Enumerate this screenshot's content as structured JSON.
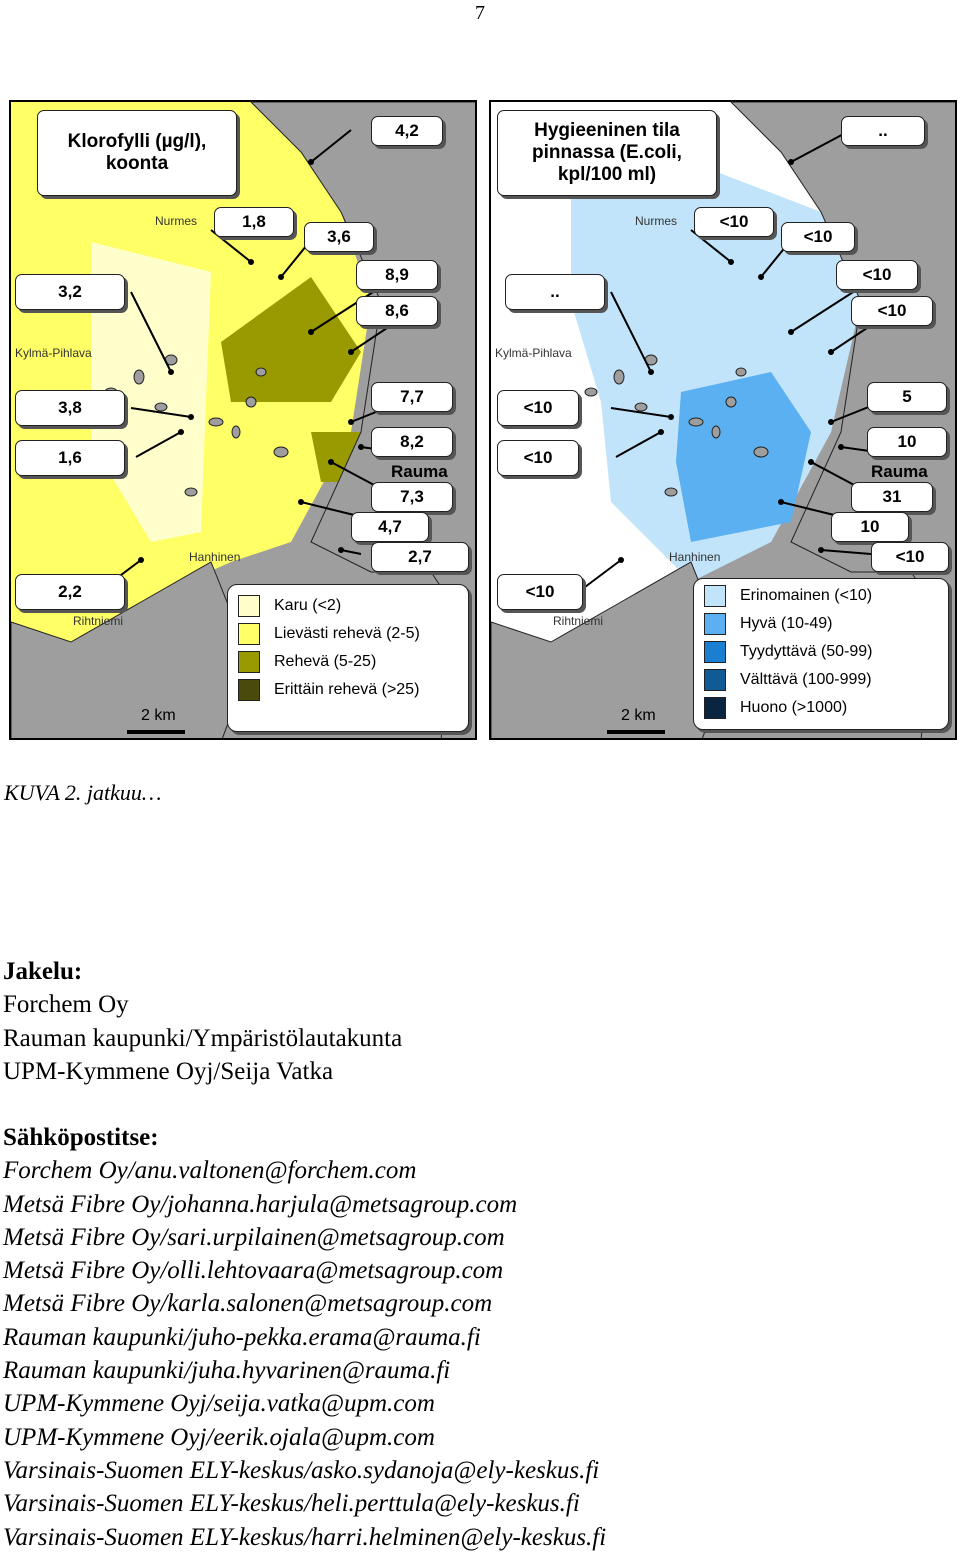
{
  "page_number": "7",
  "caption": "KUVA 2. jatkuu…",
  "map_left": {
    "title": "Klorofylli (µg/l), koonta",
    "values": [
      "4,2",
      "1,8",
      "3,6",
      "3,2",
      "8,9",
      "8,6",
      "3,8",
      "7,7",
      "1,6",
      "8,2",
      "7,3",
      "4,7",
      "2,7",
      "2,2"
    ],
    "places": {
      "nurmes": "Nurmes",
      "kylma": "Kylmä-Pihlava",
      "rauma": "Rauma",
      "hanhinen": "Hanhinen",
      "rihtniemi": "Rihtniemi"
    },
    "scale": "2 km",
    "legend": [
      {
        "label": "Karu (<2)",
        "color": "#ffffcc"
      },
      {
        "label": "Lievästi rehevä (2-5)",
        "color": "#ffff66"
      },
      {
        "label": "Rehevä (5-25)",
        "color": "#999900"
      },
      {
        "label": "Erittäin rehevä (>25)",
        "color": "#4a4a0a"
      }
    ]
  },
  "map_right": {
    "title": "Hygieeninen tila pinnassa (E.coli, kpl/100 ml)",
    "values": [
      "..",
      "<10",
      "<10",
      "..",
      "<10",
      "<10",
      "<10",
      "5",
      "<10",
      "10",
      "31",
      "10",
      "<10",
      "<10"
    ],
    "places": {
      "nurmes": "Nurmes",
      "kylma": "Kylmä-Pihlava",
      "rauma": "Rauma",
      "hanhinen": "Hanhinen",
      "rihtniemi": "Rihtniemi"
    },
    "scale": "2 km",
    "legend": [
      {
        "label": "Erinomainen (<10)",
        "color": "#c2e4fa"
      },
      {
        "label": "Hyvä (10-49)",
        "color": "#5ab0f0"
      },
      {
        "label": "Tyydyttävä (50-99)",
        "color": "#1a7fd0"
      },
      {
        "label": "Välttävä (100-999)",
        "color": "#105a96"
      },
      {
        "label": "Huono (>1000)",
        "color": "#0a2540"
      }
    ]
  },
  "distribution": {
    "heading": "Jakelu:",
    "lines": [
      "Forchem Oy",
      "Rauman kaupunki/Ympäristölautakunta",
      "UPM-Kymmene Oyj/Seija Vatka"
    ]
  },
  "email": {
    "heading": "Sähköpostitse:",
    "lines": [
      "Forchem Oy/anu.valtonen@forchem.com",
      "Metsä Fibre Oy/johanna.harjula@metsagroup.com",
      "Metsä Fibre Oy/sari.urpilainen@metsagroup.com",
      "Metsä Fibre Oy/olli.lehtovaara@metsagroup.com",
      "Metsä Fibre Oy/karla.salonen@metsagroup.com",
      "Rauman kaupunki/juho-pekka.erama@rauma.fi",
      "Rauman kaupunki/juha.hyvarinen@rauma.fi",
      "UPM-Kymmene Oyj/seija.vatka@upm.com",
      "UPM-Kymmene Oyj/eerik.ojala@upm.com",
      "Varsinais-Suomen ELY-keskus/asko.sydanoja@ely-keskus.fi",
      "Varsinais-Suomen ELY-keskus/heli.perttula@ely-keskus.fi",
      "Varsinais-Suomen ELY-keskus/harri.helminen@ely-keskus.fi"
    ]
  }
}
